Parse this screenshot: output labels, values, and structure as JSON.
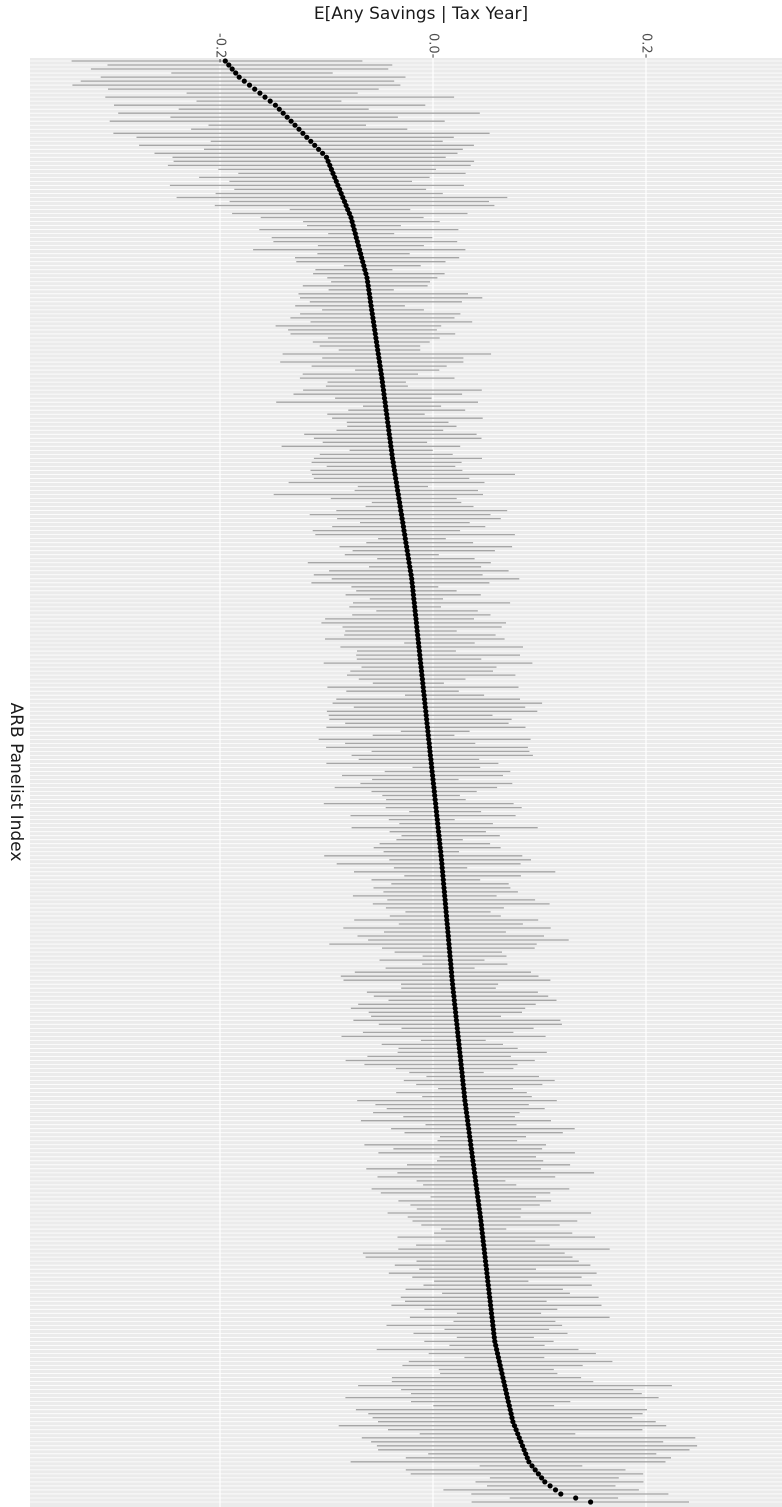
{
  "chart_data": {
    "type": "scatter",
    "title": "E[Any Savings | Tax Year]",
    "xlabel": "E[Any Savings | Tax Year]",
    "ylabel": "ARB Panelist Index",
    "xlim": [
      -0.38,
      0.33
    ],
    "x_ticks": [
      -0.2,
      0.0,
      0.2
    ],
    "x_tick_labels": [
      "-0.2-",
      "0.0-",
      "0.2-"
    ],
    "tick_label_orientation": "rotated-90",
    "grid": true,
    "legend": "none",
    "n_panelists": 360,
    "error_bars": "horizontal interval per panelist",
    "point_color": "#000000",
    "interval_color": "#a6a6a6",
    "panel_background": "#ebebeb",
    "grid_color": "#ffffff",
    "curve_points": [
      {
        "rank": 1,
        "estimate": -0.195
      },
      {
        "rank": 5,
        "estimate": -0.182
      },
      {
        "rank": 12,
        "estimate": -0.148
      },
      {
        "rank": 25,
        "estimate": -0.1
      },
      {
        "rank": 40,
        "estimate": -0.077
      },
      {
        "rank": 55,
        "estimate": -0.062
      },
      {
        "rank": 80,
        "estimate": -0.048
      },
      {
        "rank": 100,
        "estimate": -0.038
      },
      {
        "rank": 130,
        "estimate": -0.02
      },
      {
        "rank": 160,
        "estimate": -0.008
      },
      {
        "rank": 180,
        "estimate": 0.0
      },
      {
        "rank": 200,
        "estimate": 0.008
      },
      {
        "rank": 230,
        "estimate": 0.018
      },
      {
        "rank": 260,
        "estimate": 0.03
      },
      {
        "rank": 290,
        "estimate": 0.045
      },
      {
        "rank": 320,
        "estimate": 0.058
      },
      {
        "rank": 340,
        "estimate": 0.075
      },
      {
        "rank": 350,
        "estimate": 0.09
      },
      {
        "rank": 355,
        "estimate": 0.105
      },
      {
        "rank": 358,
        "estimate": 0.12
      },
      {
        "rank": 360,
        "estimate": 0.148
      }
    ]
  }
}
